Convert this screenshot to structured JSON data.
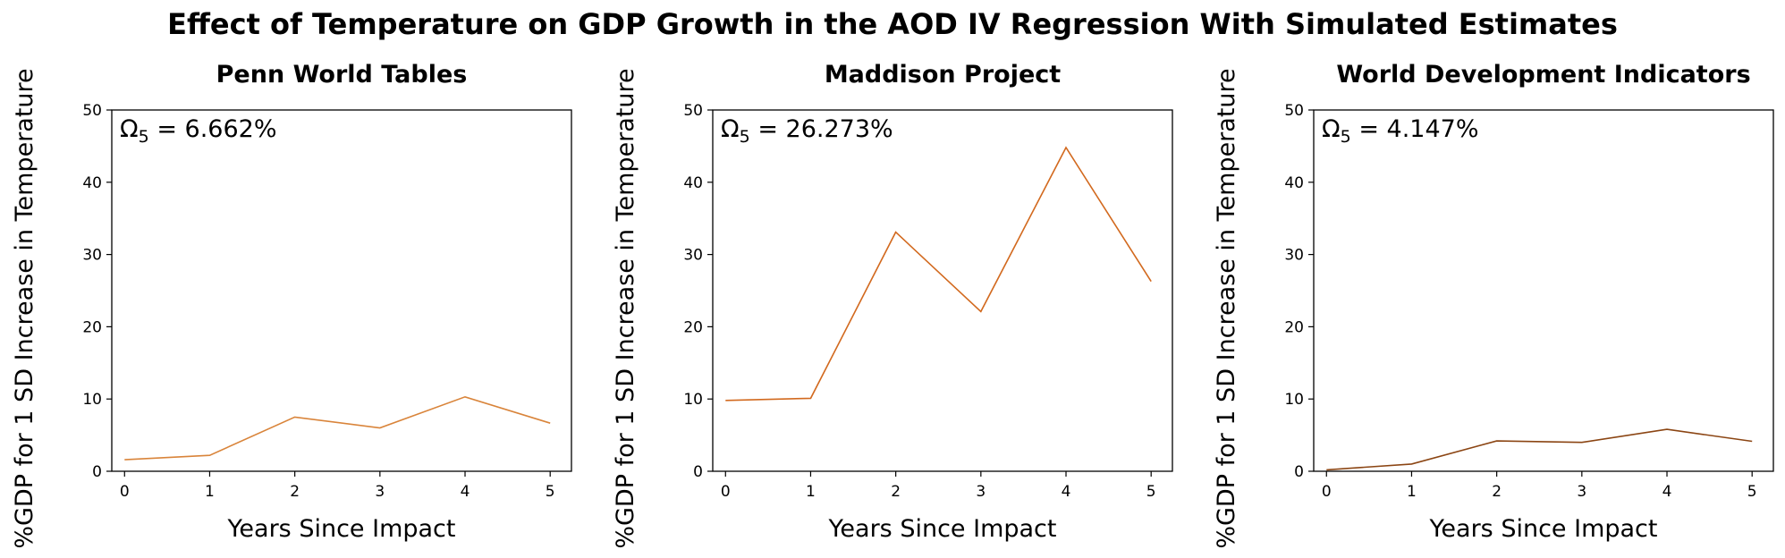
{
  "title": "Effect of Temperature on GDP Growth in the AOD IV Regression With Simulated Estimates",
  "chart_data": [
    {
      "type": "line",
      "title": "Penn World Tables",
      "xlabel": "Years Since Impact",
      "ylabel": "%GDP for 1 SD Increase in Temperature",
      "x": [
        0,
        1,
        2,
        3,
        4,
        5
      ],
      "y": [
        1.6,
        2.2,
        7.5,
        6.0,
        10.3,
        6.662
      ],
      "xticks": [
        "0",
        "1",
        "2",
        "3",
        "4",
        "5"
      ],
      "yticks": [
        "0",
        "10",
        "20",
        "30",
        "40",
        "50"
      ],
      "ylim": [
        0,
        50
      ],
      "xlim": [
        -0.15,
        5.25
      ],
      "annotation": {
        "symbol": "Ω",
        "subscript": "5",
        "text": " = 6.662%"
      },
      "color": "#d9843a",
      "grid": false
    },
    {
      "type": "line",
      "title": "Maddison Project",
      "xlabel": "Years Since Impact",
      "ylabel": "%GDP for 1 SD Increase in Temperature",
      "x": [
        0,
        1,
        2,
        3,
        4,
        5
      ],
      "y": [
        9.8,
        10.1,
        33.1,
        22.1,
        44.8,
        26.273
      ],
      "xticks": [
        "0",
        "1",
        "2",
        "3",
        "4",
        "5"
      ],
      "yticks": [
        "0",
        "10",
        "20",
        "30",
        "40",
        "50"
      ],
      "ylim": [
        0,
        50
      ],
      "xlim": [
        -0.15,
        5.25
      ],
      "annotation": {
        "symbol": "Ω",
        "subscript": "5",
        "text": " = 26.273%"
      },
      "color": "#d2691e",
      "grid": false
    },
    {
      "type": "line",
      "title": "World Development Indicators",
      "xlabel": "Years Since Impact",
      "ylabel": "%GDP for 1 SD Increase in Temperature",
      "x": [
        0,
        1,
        2,
        3,
        4,
        5
      ],
      "y": [
        0.2,
        1.0,
        4.2,
        4.0,
        5.8,
        4.147
      ],
      "xticks": [
        "0",
        "1",
        "2",
        "3",
        "4",
        "5"
      ],
      "yticks": [
        "0",
        "10",
        "20",
        "30",
        "40",
        "50"
      ],
      "ylim": [
        0,
        50
      ],
      "xlim": [
        -0.15,
        5.25
      ],
      "annotation": {
        "symbol": "Ω",
        "subscript": "5",
        "text": " = 4.147%"
      },
      "color": "#8b4513",
      "grid": false
    }
  ]
}
